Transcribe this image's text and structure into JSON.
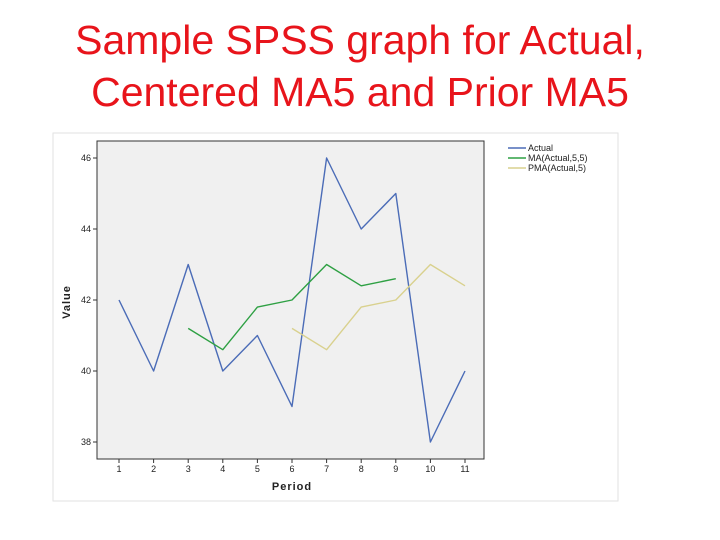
{
  "slide": {
    "title_line1": "Sample SPSS graph for Actual,",
    "title_line2": "Centered MA5 and Prior MA5"
  },
  "chart_data": {
    "type": "line",
    "xlabel": "Period",
    "ylabel": "Value",
    "x": [
      1,
      2,
      3,
      4,
      5,
      6,
      7,
      8,
      9,
      10,
      11
    ],
    "xtick_labels": [
      "1",
      "2",
      "3",
      "4",
      "5",
      "6",
      "7",
      "8",
      "9",
      "10",
      "11"
    ],
    "ylim": [
      38,
      46
    ],
    "yticks": [
      38,
      40,
      42,
      44,
      46
    ],
    "ytick_labels": [
      "38",
      "40",
      "42",
      "44",
      "46"
    ],
    "grid": false,
    "legend_position": "top-right-outside",
    "series": [
      {
        "name": "Actual",
        "color": "#4b6cb7",
        "values": [
          42,
          40,
          43,
          40,
          41,
          39,
          46,
          44,
          45,
          38,
          40
        ]
      },
      {
        "name": "MA(Actual,5,5)",
        "color": "#2ea043",
        "values": [
          null,
          null,
          41.2,
          40.6,
          41.8,
          42,
          43,
          42.4,
          42.6,
          null,
          null
        ]
      },
      {
        "name": "PMA(Actual,5)",
        "color": "#d9d18e",
        "values": [
          null,
          null,
          null,
          null,
          null,
          41.2,
          40.6,
          41.8,
          42,
          43,
          42.4
        ]
      }
    ]
  }
}
